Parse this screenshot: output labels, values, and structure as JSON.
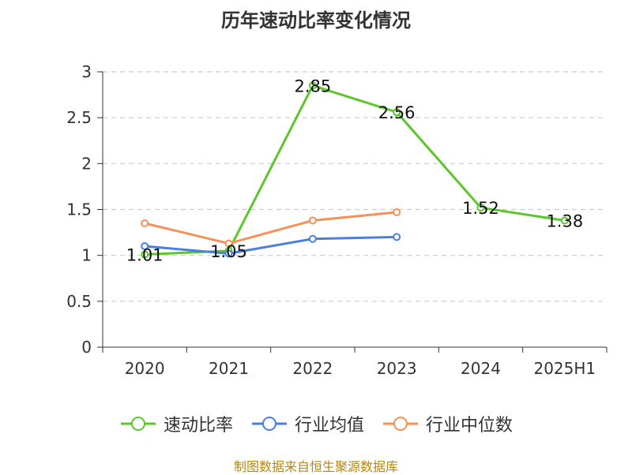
{
  "chart_data": {
    "type": "line",
    "title": "历年速动比率变化情况",
    "categories": [
      "2020",
      "2021",
      "2022",
      "2023",
      "2024",
      "2025H1"
    ],
    "yticks": [
      "0",
      "0.5",
      "1",
      "1.5",
      "2",
      "2.5",
      "3"
    ],
    "ylim": [
      0,
      3
    ],
    "grid": true,
    "legend_position": "bottom",
    "series": [
      {
        "name": "速动比率",
        "color": "#5cc72a",
        "values": [
          1.01,
          1.05,
          2.85,
          2.56,
          1.52,
          1.38
        ],
        "labels": [
          "1.01",
          "1.05",
          "2.85",
          "2.56",
          "1.52",
          "1.38"
        ],
        "show_labels": true
      },
      {
        "name": "行业均值",
        "color": "#4a7fdc",
        "values": [
          1.1,
          1.02,
          1.18,
          1.2,
          null,
          null
        ],
        "show_labels": false
      },
      {
        "name": "行业中位数",
        "color": "#f5905a",
        "values": [
          1.35,
          1.13,
          1.38,
          1.47,
          null,
          null
        ],
        "show_labels": false
      }
    ]
  },
  "source": "制图数据来自恒生聚源数据库"
}
